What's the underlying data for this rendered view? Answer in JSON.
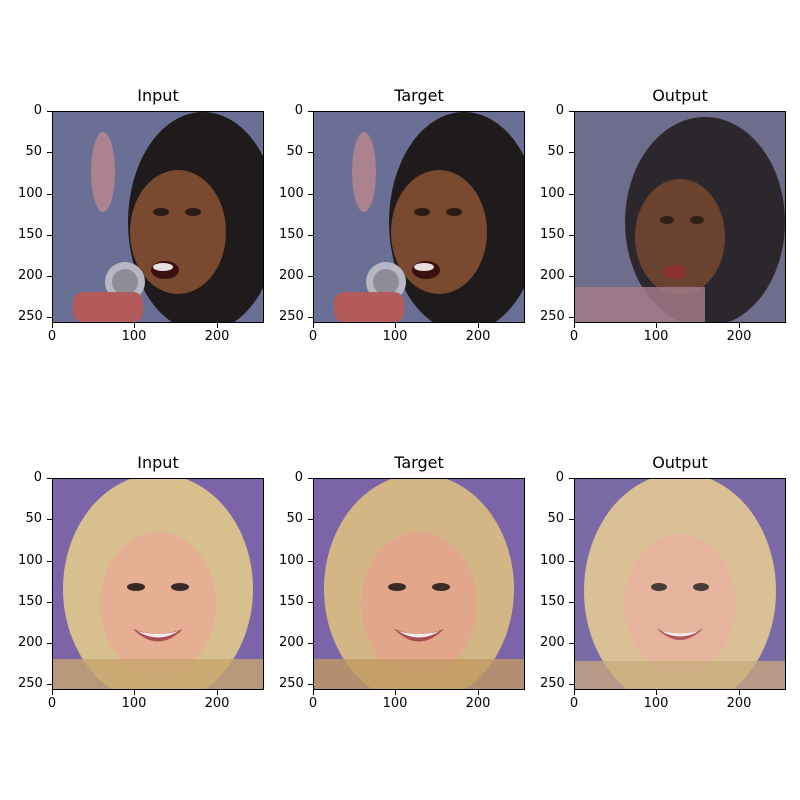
{
  "figures": [
    {
      "panels": [
        {
          "title": "Input",
          "subject": "singer-with-microphone",
          "quality": "sharp"
        },
        {
          "title": "Target",
          "subject": "singer-with-microphone",
          "quality": "sharp"
        },
        {
          "title": "Output",
          "subject": "singer-reconstruction",
          "quality": "blurry"
        }
      ]
    },
    {
      "panels": [
        {
          "title": "Input",
          "subject": "blonde-woman-smiling",
          "quality": "sharp"
        },
        {
          "title": "Target",
          "subject": "blonde-woman-smiling",
          "quality": "sharp"
        },
        {
          "title": "Output",
          "subject": "blonde-woman-reconstruction",
          "quality": "blurry"
        }
      ]
    }
  ],
  "axes": {
    "y_ticks": [
      "0",
      "50",
      "100",
      "150",
      "200",
      "250"
    ],
    "x_ticks": [
      "0",
      "100",
      "200"
    ],
    "y_range": [
      0,
      255
    ],
    "x_range": [
      0,
      255
    ]
  },
  "colors": {
    "row1_background": "#6a6f96",
    "row1_skin": "#7a4a30",
    "row1_hair": "#1f1a1c",
    "row2_background": "#7b64a8",
    "row2_hair": "#d8bf8e",
    "row2_skin": "#e6ae93"
  }
}
